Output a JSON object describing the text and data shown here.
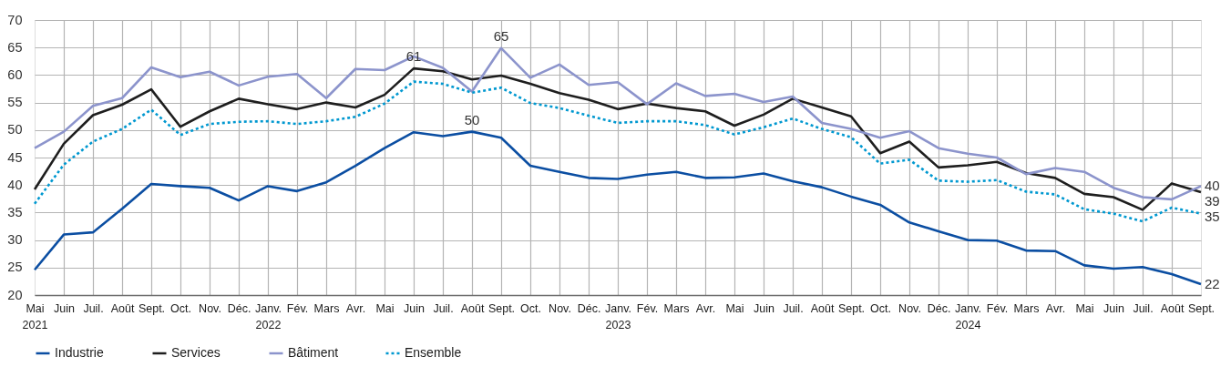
{
  "chart_data": {
    "type": "line",
    "line_style": "solid",
    "grid": true,
    "legend": "bottom",
    "categories": [
      "Mai\n2021",
      "Juin",
      "Juil.",
      "Août",
      "Sept.",
      "Oct.",
      "Nov.",
      "Déc.",
      "Janv.\n2022",
      "Fév.",
      "Mars",
      "Avr.",
      "Mai",
      "Juin",
      "Juil.",
      "Août",
      "Sept.",
      "Oct.",
      "Nov.",
      "Déc.",
      "Janv.\n2023",
      "Fév.",
      "Mars",
      "Avr.",
      "Mai",
      "Juin",
      "Juil.",
      "Août",
      "Sept.",
      "Oct.",
      "Nov.",
      "Déc.",
      "Janv.\n2024",
      "Fév.",
      "Mars",
      "Avr.",
      "Mai",
      "Juin",
      "Juil.",
      "Août",
      "Sept."
    ],
    "ylim": [
      20,
      70
    ],
    "yticks": [
      20,
      25,
      30,
      35,
      40,
      45,
      50,
      55,
      60,
      65,
      70
    ],
    "series": [
      {
        "name": "Industrie",
        "color": "#0b4ea2",
        "values": [
          24.6,
          31.0,
          31.4,
          35.7,
          40.2,
          39.8,
          39.5,
          37.2,
          39.8,
          38.9,
          40.5,
          43.5,
          46.7,
          49.6,
          48.9,
          49.7,
          48.6,
          43.5,
          42.4,
          41.3,
          41.1,
          41.9,
          42.4,
          41.3,
          41.4,
          42.1,
          40.7,
          39.6,
          37.9,
          36.4,
          33.2,
          31.6,
          30.0,
          29.9,
          28.1,
          28.0,
          25.4,
          24.8,
          25.1,
          23.8,
          22.0
        ],
        "value_labels": [
          null,
          null,
          null,
          null,
          null,
          null,
          null,
          null,
          null,
          null,
          null,
          null,
          null,
          null,
          null,
          "50",
          null,
          null,
          null,
          null,
          null,
          null,
          null,
          null,
          null,
          null,
          null,
          null,
          null,
          null,
          null,
          null,
          null,
          null,
          null,
          null,
          null,
          null,
          null,
          null,
          "22"
        ]
      },
      {
        "name": "Services",
        "color": "#1e1e1e",
        "values": [
          39.2,
          47.5,
          52.7,
          54.6,
          57.4,
          50.6,
          53.4,
          55.7,
          54.7,
          53.8,
          55.0,
          54.1,
          56.4,
          61.2,
          60.7,
          59.2,
          59.9,
          58.4,
          56.7,
          55.5,
          53.8,
          54.8,
          54.0,
          53.4,
          50.8,
          52.8,
          55.7,
          54.1,
          52.5,
          45.8,
          47.9,
          43.2,
          43.6,
          44.2,
          42.2,
          41.3,
          38.4,
          37.8,
          35.5,
          40.3,
          38.7
        ],
        "value_labels": [
          null,
          null,
          null,
          null,
          null,
          null,
          null,
          null,
          null,
          null,
          null,
          null,
          null,
          "61",
          null,
          null,
          null,
          null,
          null,
          null,
          null,
          null,
          null,
          null,
          null,
          null,
          null,
          null,
          null,
          null,
          null,
          null,
          null,
          null,
          null,
          null,
          null,
          null,
          null,
          null,
          "39"
        ]
      },
      {
        "name": "Bâtiment",
        "color": "#8c94cc",
        "values": [
          46.7,
          49.7,
          54.4,
          55.8,
          61.4,
          59.6,
          60.6,
          58.1,
          59.7,
          60.2,
          55.8,
          61.1,
          60.9,
          63.4,
          61.3,
          57.0,
          64.9,
          59.5,
          61.9,
          58.2,
          58.7,
          54.7,
          58.5,
          56.2,
          56.6,
          55.1,
          56.1,
          51.3,
          50.2,
          48.6,
          49.8,
          46.7,
          45.7,
          45.0,
          42.0,
          43.1,
          42.4,
          39.5,
          37.8,
          37.4,
          39.8
        ],
        "value_labels": [
          null,
          null,
          null,
          null,
          null,
          null,
          null,
          null,
          null,
          null,
          null,
          null,
          null,
          null,
          null,
          null,
          "65",
          null,
          null,
          null,
          null,
          null,
          null,
          null,
          null,
          null,
          null,
          null,
          null,
          null,
          null,
          null,
          null,
          null,
          null,
          null,
          null,
          null,
          null,
          null,
          "40"
        ]
      },
      {
        "name": "Ensemble",
        "color": "#0098d0",
        "line_style": "dotted",
        "values": [
          36.6,
          43.7,
          47.9,
          50.2,
          53.7,
          49.1,
          51.1,
          51.5,
          51.6,
          51.1,
          51.6,
          52.4,
          54.8,
          58.8,
          58.4,
          56.8,
          57.7,
          54.9,
          54.0,
          52.6,
          51.3,
          51.6,
          51.6,
          50.9,
          49.2,
          50.5,
          52.1,
          50.2,
          48.7,
          43.9,
          44.6,
          40.8,
          40.6,
          40.9,
          38.8,
          38.3,
          35.6,
          34.8,
          33.4,
          35.9,
          34.8
        ],
        "value_labels": [
          null,
          null,
          null,
          null,
          null,
          null,
          null,
          null,
          null,
          null,
          null,
          null,
          null,
          null,
          null,
          null,
          null,
          null,
          null,
          null,
          null,
          null,
          null,
          null,
          null,
          null,
          null,
          null,
          null,
          null,
          null,
          null,
          null,
          null,
          null,
          null,
          null,
          null,
          null,
          null,
          "35"
        ]
      }
    ]
  }
}
